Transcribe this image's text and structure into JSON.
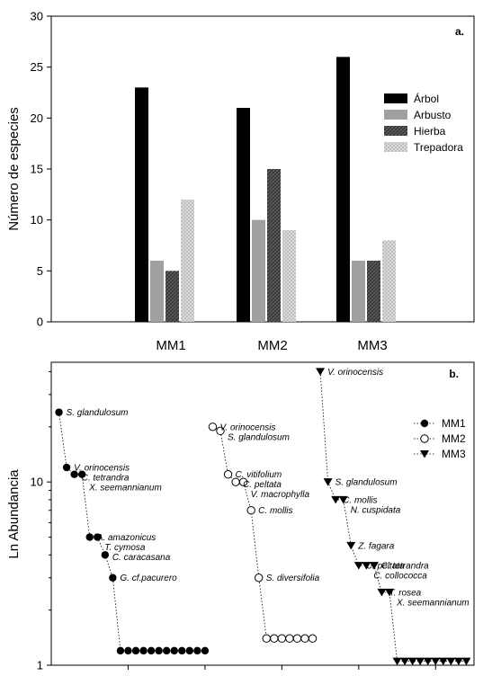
{
  "chart_data": [
    {
      "type": "bar",
      "panel_label": "a.",
      "ylabel": "Número de especies",
      "xlabel": "",
      "categories": [
        "MM1",
        "MM2",
        "MM3"
      ],
      "ylim": [
        0,
        30
      ],
      "yticks": [
        "0",
        "5",
        "10",
        "15",
        "20",
        "25",
        "30"
      ],
      "legend_position": "right",
      "grid": false,
      "series": [
        {
          "name": "Árbol",
          "values": [
            23,
            21,
            26
          ],
          "color": "#000000",
          "pattern": "solid"
        },
        {
          "name": "Arbusto",
          "values": [
            6,
            10,
            6
          ],
          "color": "#a0a0a0",
          "pattern": "solid"
        },
        {
          "name": "Hierba",
          "values": [
            5,
            15,
            6
          ],
          "color": "#505050",
          "pattern": "crosshatch-dark"
        },
        {
          "name": "Trepadora",
          "values": [
            12,
            9,
            8
          ],
          "color": "#d0d0d0",
          "pattern": "crosshatch-light"
        }
      ]
    },
    {
      "type": "scatter",
      "panel_label": "b.",
      "ylabel": "Ln Abundancia",
      "xlabel": "",
      "yscale": "log",
      "ylim": [
        1,
        45
      ],
      "yticks": [
        "1",
        "10"
      ],
      "xlim": [
        0,
        55
      ],
      "legend_position": "top-right",
      "grid": false,
      "series": [
        {
          "name": "MM1",
          "marker": "filled-circle",
          "points": [
            {
              "x": 1,
              "y": 24,
              "label": "S. glandulosum"
            },
            {
              "x": 2,
              "y": 12,
              "label": "V. orinocensis"
            },
            {
              "x": 3,
              "y": 11,
              "label": "C. tetrandra"
            },
            {
              "x": 4,
              "y": 11,
              "label": "X. seemannianum"
            },
            {
              "x": 5,
              "y": 5,
              "label": "A. amazonicus"
            },
            {
              "x": 6,
              "y": 5,
              "label": "T. cymosa"
            },
            {
              "x": 7,
              "y": 4,
              "label": "C. caracasana"
            },
            {
              "x": 8,
              "y": 3,
              "label": "G. cf.pacurero"
            },
            {
              "x": 9,
              "y": 1.2,
              "label": ""
            },
            {
              "x": 10,
              "y": 1.2,
              "label": ""
            },
            {
              "x": 11,
              "y": 1.2,
              "label": ""
            },
            {
              "x": 12,
              "y": 1.2,
              "label": ""
            },
            {
              "x": 13,
              "y": 1.2,
              "label": ""
            },
            {
              "x": 14,
              "y": 1.2,
              "label": ""
            },
            {
              "x": 15,
              "y": 1.2,
              "label": ""
            },
            {
              "x": 16,
              "y": 1.2,
              "label": ""
            },
            {
              "x": 17,
              "y": 1.2,
              "label": ""
            },
            {
              "x": 18,
              "y": 1.2,
              "label": ""
            },
            {
              "x": 19,
              "y": 1.2,
              "label": ""
            },
            {
              "x": 20,
              "y": 1.2,
              "label": ""
            }
          ]
        },
        {
          "name": "MM2",
          "marker": "open-circle",
          "points": [
            {
              "x": 21,
              "y": 20,
              "label": "V. orinocensis"
            },
            {
              "x": 22,
              "y": 19,
              "label": "S. glandulosum"
            },
            {
              "x": 23,
              "y": 11,
              "label": "C. vitifolium"
            },
            {
              "x": 24,
              "y": 10,
              "label": "C. peltata"
            },
            {
              "x": 25,
              "y": 10,
              "label": "V. macrophylla"
            },
            {
              "x": 26,
              "y": 7,
              "label": "C. mollis"
            },
            {
              "x": 27,
              "y": 3,
              "label": "S. diversifolia"
            },
            {
              "x": 28,
              "y": 1.4,
              "label": ""
            },
            {
              "x": 29,
              "y": 1.4,
              "label": ""
            },
            {
              "x": 30,
              "y": 1.4,
              "label": ""
            },
            {
              "x": 31,
              "y": 1.4,
              "label": ""
            },
            {
              "x": 32,
              "y": 1.4,
              "label": ""
            },
            {
              "x": 33,
              "y": 1.4,
              "label": ""
            },
            {
              "x": 34,
              "y": 1.4,
              "label": ""
            }
          ]
        },
        {
          "name": "MM3",
          "marker": "filled-triangle-down",
          "points": [
            {
              "x": 35,
              "y": 40,
              "label": "V. orinocensis"
            },
            {
              "x": 36,
              "y": 10,
              "label": "S. glandulosum"
            },
            {
              "x": 37,
              "y": 8,
              "label": "C. mollis"
            },
            {
              "x": 38,
              "y": 8,
              "label": "N. cuspidata"
            },
            {
              "x": 39,
              "y": 4.5,
              "label": "Z. fagara"
            },
            {
              "x": 40,
              "y": 3.5,
              "label": "C. peltata"
            },
            {
              "x": 41,
              "y": 3.5,
              "label": "C. collococca"
            },
            {
              "x": 42,
              "y": 3.5,
              "label": "C. tetrandra"
            },
            {
              "x": 43,
              "y": 2.5,
              "label": "T. rosea"
            },
            {
              "x": 44,
              "y": 2.5,
              "label": "X. seemannianum"
            },
            {
              "x": 45,
              "y": 1.05,
              "label": ""
            },
            {
              "x": 46,
              "y": 1.05,
              "label": ""
            },
            {
              "x": 47,
              "y": 1.05,
              "label": ""
            },
            {
              "x": 48,
              "y": 1.05,
              "label": ""
            },
            {
              "x": 49,
              "y": 1.05,
              "label": ""
            },
            {
              "x": 50,
              "y": 1.05,
              "label": ""
            },
            {
              "x": 51,
              "y": 1.05,
              "label": ""
            },
            {
              "x": 52,
              "y": 1.05,
              "label": ""
            },
            {
              "x": 53,
              "y": 1.05,
              "label": ""
            },
            {
              "x": 54,
              "y": 1.05,
              "label": ""
            }
          ]
        }
      ]
    }
  ]
}
